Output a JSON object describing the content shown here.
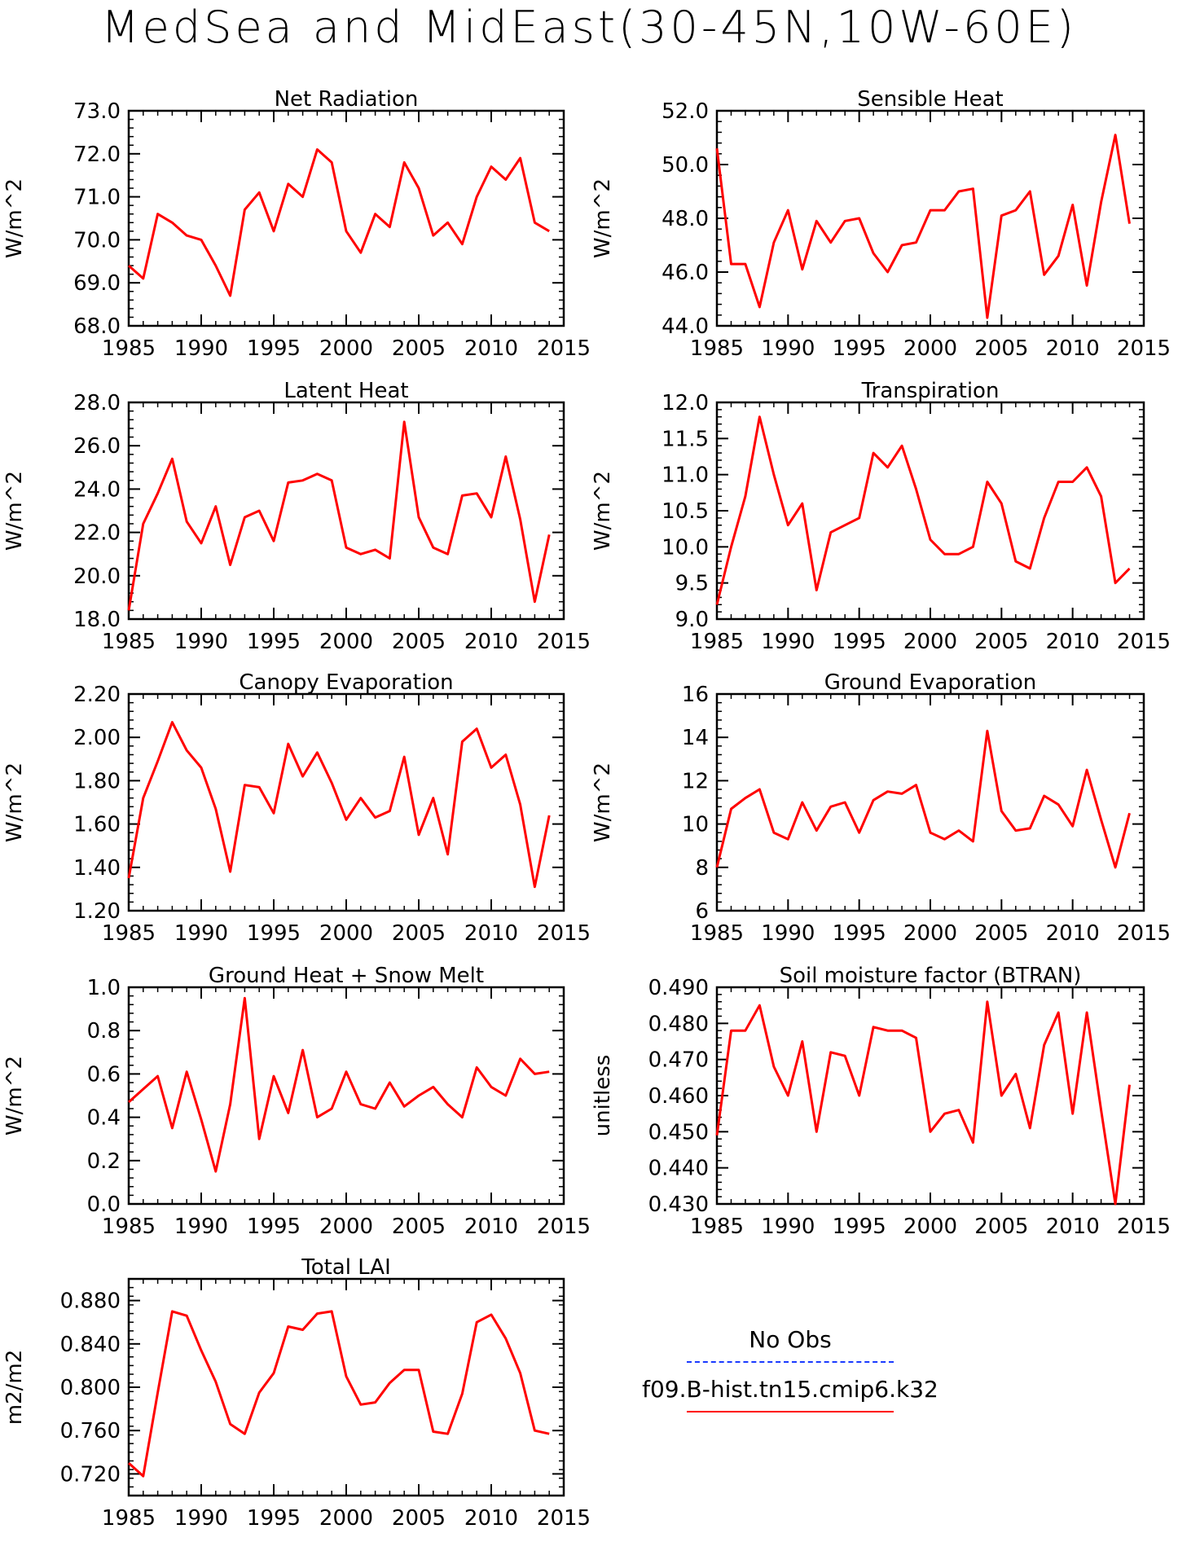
{
  "title": "MedSea and MidEast(30-45N,10W-60E)",
  "colors": {
    "model": "#ff0000",
    "obs": "#1a3aff",
    "axis": "#000000"
  },
  "legend": {
    "obs_label": "No Obs",
    "model_label": "f09.B-hist.tn15.cmip6.k32"
  },
  "chart_data": [
    {
      "type": "line",
      "title": "Net Radiation",
      "ylabel": "W/m^2",
      "xlim": [
        1985,
        2015
      ],
      "ylim": [
        68.0,
        73.0
      ],
      "xticks": [
        1985,
        1990,
        1995,
        2000,
        2005,
        2010,
        2015
      ],
      "xtick_labels": [
        "1985",
        "1990",
        "1995",
        "2000",
        "2005",
        "2010",
        "2015"
      ],
      "yticks": [
        68.0,
        69.0,
        70.0,
        71.0,
        72.0,
        73.0
      ],
      "ytick_labels": [
        "68.0",
        "69.0",
        "70.0",
        "71.0",
        "72.0",
        "73.0"
      ],
      "series": [
        {
          "x": [
            1985,
            1986,
            1987,
            1988,
            1989,
            1990,
            1991,
            1992,
            1993,
            1994,
            1995,
            1996,
            1997,
            1998,
            1999,
            2000,
            2001,
            2002,
            2003,
            2004,
            2005,
            2006,
            2007,
            2008,
            2009,
            2010,
            2011,
            2012,
            2013,
            2014
          ],
          "values": [
            69.4,
            69.1,
            70.6,
            70.4,
            70.1,
            70.0,
            69.4,
            68.7,
            70.7,
            71.1,
            70.2,
            71.3,
            71.0,
            72.1,
            71.8,
            70.2,
            69.7,
            70.6,
            70.3,
            71.8,
            71.2,
            70.1,
            70.4,
            69.9,
            71.0,
            71.7,
            71.4,
            71.9,
            70.4,
            70.2
          ]
        }
      ]
    },
    {
      "type": "line",
      "title": "Sensible Heat",
      "ylabel": "W/m^2",
      "xlim": [
        1985,
        2015
      ],
      "ylim": [
        44.0,
        52.0
      ],
      "xticks": [
        1985,
        1990,
        1995,
        2000,
        2005,
        2010,
        2015
      ],
      "xtick_labels": [
        "1985",
        "1990",
        "1995",
        "2000",
        "2005",
        "2010",
        "2015"
      ],
      "yticks": [
        44.0,
        46.0,
        48.0,
        50.0,
        52.0
      ],
      "ytick_labels": [
        "44.0",
        "46.0",
        "48.0",
        "50.0",
        "52.0"
      ],
      "series": [
        {
          "x": [
            1985,
            1986,
            1987,
            1988,
            1989,
            1990,
            1991,
            1992,
            1993,
            1994,
            1995,
            1996,
            1997,
            1998,
            1999,
            2000,
            2001,
            2002,
            2003,
            2004,
            2005,
            2006,
            2007,
            2008,
            2009,
            2010,
            2011,
            2012,
            2013,
            2014
          ],
          "values": [
            50.6,
            46.3,
            46.3,
            44.7,
            47.1,
            48.3,
            46.1,
            47.9,
            47.1,
            47.9,
            48.0,
            46.7,
            46.0,
            47.0,
            47.1,
            48.3,
            48.3,
            49.0,
            49.1,
            44.3,
            48.1,
            48.3,
            49.0,
            45.9,
            46.6,
            48.5,
            45.5,
            48.6,
            51.1,
            47.8
          ]
        }
      ]
    },
    {
      "type": "line",
      "title": "Latent Heat",
      "ylabel": "W/m^2",
      "xlim": [
        1985,
        2015
      ],
      "ylim": [
        18.0,
        28.0
      ],
      "xticks": [
        1985,
        1990,
        1995,
        2000,
        2005,
        2010,
        2015
      ],
      "xtick_labels": [
        "1985",
        "1990",
        "1995",
        "2000",
        "2005",
        "2010",
        "2015"
      ],
      "yticks": [
        18.0,
        20.0,
        22.0,
        24.0,
        26.0,
        28.0
      ],
      "ytick_labels": [
        "18.0",
        "20.0",
        "22.0",
        "24.0",
        "26.0",
        "28.0"
      ],
      "series": [
        {
          "x": [
            1985,
            1986,
            1987,
            1988,
            1989,
            1990,
            1991,
            1992,
            1993,
            1994,
            1995,
            1996,
            1997,
            1998,
            1999,
            2000,
            2001,
            2002,
            2003,
            2004,
            2005,
            2006,
            2007,
            2008,
            2009,
            2010,
            2011,
            2012,
            2013,
            2014
          ],
          "values": [
            18.4,
            22.4,
            23.8,
            25.4,
            22.5,
            21.5,
            23.2,
            20.5,
            22.7,
            23.0,
            21.6,
            24.3,
            24.4,
            24.7,
            24.4,
            21.3,
            21.0,
            21.2,
            20.8,
            27.1,
            22.7,
            21.3,
            21.0,
            23.7,
            23.8,
            22.7,
            25.5,
            22.6,
            18.8,
            21.9
          ]
        }
      ]
    },
    {
      "type": "line",
      "title": "Transpiration",
      "ylabel": "W/m^2",
      "xlim": [
        1985,
        2015
      ],
      "ylim": [
        9.0,
        12.0
      ],
      "xticks": [
        1985,
        1990,
        1995,
        2000,
        2005,
        2010,
        2015
      ],
      "xtick_labels": [
        "1985",
        "1990",
        "1995",
        "2000",
        "2005",
        "2010",
        "2015"
      ],
      "yticks": [
        9.0,
        9.5,
        10.0,
        10.5,
        11.0,
        11.5,
        12.0
      ],
      "ytick_labels": [
        "9.0",
        "9.5",
        "10.0",
        "10.5",
        "11.0",
        "11.5",
        "12.0"
      ],
      "series": [
        {
          "x": [
            1985,
            1986,
            1987,
            1988,
            1989,
            1990,
            1991,
            1992,
            1993,
            1994,
            1995,
            1996,
            1997,
            1998,
            1999,
            2000,
            2001,
            2002,
            2003,
            2004,
            2005,
            2006,
            2007,
            2008,
            2009,
            2010,
            2011,
            2012,
            2013,
            2014
          ],
          "values": [
            9.2,
            10.0,
            10.7,
            11.8,
            11.0,
            10.3,
            10.6,
            9.4,
            10.2,
            10.3,
            10.4,
            11.3,
            11.1,
            11.4,
            10.8,
            10.1,
            9.9,
            9.9,
            10.0,
            10.9,
            10.6,
            9.8,
            9.7,
            10.4,
            10.9,
            10.9,
            11.1,
            10.7,
            9.5,
            9.7
          ]
        }
      ]
    },
    {
      "type": "line",
      "title": "Canopy Evaporation",
      "ylabel": "W/m^2",
      "xlim": [
        1985,
        2015
      ],
      "ylim": [
        1.2,
        2.2
      ],
      "xticks": [
        1985,
        1990,
        1995,
        2000,
        2005,
        2010,
        2015
      ],
      "xtick_labels": [
        "1985",
        "1990",
        "1995",
        "2000",
        "2005",
        "2010",
        "2015"
      ],
      "yticks": [
        1.2,
        1.4,
        1.6,
        1.8,
        2.0,
        2.2
      ],
      "ytick_labels": [
        "1.20",
        "1.40",
        "1.60",
        "1.80",
        "2.00",
        "2.20"
      ],
      "series": [
        {
          "x": [
            1985,
            1986,
            1987,
            1988,
            1989,
            1990,
            1991,
            1992,
            1993,
            1994,
            1995,
            1996,
            1997,
            1998,
            1999,
            2000,
            2001,
            2002,
            2003,
            2004,
            2005,
            2006,
            2007,
            2008,
            2009,
            2010,
            2011,
            2012,
            2013,
            2014
          ],
          "values": [
            1.35,
            1.72,
            1.89,
            2.07,
            1.94,
            1.86,
            1.67,
            1.38,
            1.78,
            1.77,
            1.65,
            1.97,
            1.82,
            1.93,
            1.79,
            1.62,
            1.72,
            1.63,
            1.66,
            1.91,
            1.55,
            1.72,
            1.46,
            1.98,
            2.04,
            1.86,
            1.92,
            1.69,
            1.31,
            1.64
          ]
        }
      ]
    },
    {
      "type": "line",
      "title": "Ground Evaporation",
      "ylabel": "W/m^2",
      "xlim": [
        1985,
        2015
      ],
      "ylim": [
        6,
        16
      ],
      "xticks": [
        1985,
        1990,
        1995,
        2000,
        2005,
        2010,
        2015
      ],
      "xtick_labels": [
        "1985",
        "1990",
        "1995",
        "2000",
        "2005",
        "2010",
        "2015"
      ],
      "yticks": [
        6,
        8,
        10,
        12,
        14,
        16
      ],
      "ytick_labels": [
        "6",
        "8",
        "10",
        "12",
        "14",
        "16"
      ],
      "series": [
        {
          "x": [
            1985,
            1986,
            1987,
            1988,
            1989,
            1990,
            1991,
            1992,
            1993,
            1994,
            1995,
            1996,
            1997,
            1998,
            1999,
            2000,
            2001,
            2002,
            2003,
            2004,
            2005,
            2006,
            2007,
            2008,
            2009,
            2010,
            2011,
            2012,
            2013,
            2014
          ],
          "values": [
            8.0,
            10.7,
            11.2,
            11.6,
            9.6,
            9.3,
            11.0,
            9.7,
            10.8,
            11.0,
            9.6,
            11.1,
            11.5,
            11.4,
            11.8,
            9.6,
            9.3,
            9.7,
            9.2,
            14.3,
            10.6,
            9.7,
            9.8,
            11.3,
            10.9,
            9.9,
            12.5,
            10.2,
            8.0,
            10.5
          ]
        }
      ]
    },
    {
      "type": "line",
      "title": "Ground Heat + Snow Melt",
      "ylabel": "W/m^2",
      "xlim": [
        1985,
        2015
      ],
      "ylim": [
        0.0,
        1.0
      ],
      "xticks": [
        1985,
        1990,
        1995,
        2000,
        2005,
        2010,
        2015
      ],
      "xtick_labels": [
        "1985",
        "1990",
        "1995",
        "2000",
        "2005",
        "2010",
        "2015"
      ],
      "yticks": [
        0.0,
        0.2,
        0.4,
        0.6,
        0.8,
        1.0
      ],
      "ytick_labels": [
        "0.0",
        "0.2",
        "0.4",
        "0.6",
        "0.8",
        "1.0"
      ],
      "series": [
        {
          "x": [
            1985,
            1986,
            1987,
            1988,
            1989,
            1990,
            1991,
            1992,
            1993,
            1994,
            1995,
            1996,
            1997,
            1998,
            1999,
            2000,
            2001,
            2002,
            2003,
            2004,
            2005,
            2006,
            2007,
            2008,
            2009,
            2010,
            2011,
            2012,
            2013,
            2014
          ],
          "values": [
            0.47,
            0.53,
            0.59,
            0.35,
            0.61,
            0.39,
            0.15,
            0.46,
            0.95,
            0.3,
            0.59,
            0.42,
            0.71,
            0.4,
            0.44,
            0.61,
            0.46,
            0.44,
            0.56,
            0.45,
            0.5,
            0.54,
            0.46,
            0.4,
            0.63,
            0.54,
            0.5,
            0.67,
            0.6,
            0.61
          ]
        }
      ]
    },
    {
      "type": "line",
      "title": "Soil moisture factor (BTRAN)",
      "ylabel": "unitless",
      "xlim": [
        1985,
        2015
      ],
      "ylim": [
        0.43,
        0.49
      ],
      "xticks": [
        1985,
        1990,
        1995,
        2000,
        2005,
        2010,
        2015
      ],
      "xtick_labels": [
        "1985",
        "1990",
        "1995",
        "2000",
        "2005",
        "2010",
        "2015"
      ],
      "yticks": [
        0.43,
        0.44,
        0.45,
        0.46,
        0.47,
        0.48,
        0.49
      ],
      "ytick_labels": [
        "0.430",
        "0.440",
        "0.450",
        "0.460",
        "0.470",
        "0.480",
        "0.490"
      ],
      "series": [
        {
          "x": [
            1985,
            1986,
            1987,
            1988,
            1989,
            1990,
            1991,
            1992,
            1993,
            1994,
            1995,
            1996,
            1997,
            1998,
            1999,
            2000,
            2001,
            2002,
            2003,
            2004,
            2005,
            2006,
            2007,
            2008,
            2009,
            2010,
            2011,
            2012,
            2013,
            2014
          ],
          "values": [
            0.449,
            0.478,
            0.478,
            0.485,
            0.468,
            0.46,
            0.475,
            0.45,
            0.472,
            0.471,
            0.46,
            0.479,
            0.478,
            0.478,
            0.476,
            0.45,
            0.455,
            0.456,
            0.447,
            0.486,
            0.46,
            0.466,
            0.451,
            0.474,
            0.483,
            0.455,
            0.483,
            0.456,
            0.43,
            0.463
          ]
        }
      ]
    },
    {
      "type": "line",
      "title": "Total LAI",
      "ylabel": "m2/m2",
      "xlim": [
        1985,
        2015
      ],
      "ylim": [
        0.7,
        0.9
      ],
      "xticks": [
        1985,
        1990,
        1995,
        2000,
        2005,
        2010,
        2015
      ],
      "xtick_labels": [
        "1985",
        "1990",
        "1995",
        "2000",
        "2005",
        "2010",
        "2015"
      ],
      "yticks": [
        0.72,
        0.76,
        0.8,
        0.84,
        0.88
      ],
      "ytick_labels": [
        "0.720",
        "0.760",
        "0.800",
        "0.840",
        "0.880"
      ],
      "series": [
        {
          "x": [
            1985,
            1986,
            1987,
            1988,
            1989,
            1990,
            1991,
            1992,
            1993,
            1994,
            1995,
            1996,
            1997,
            1998,
            1999,
            2000,
            2001,
            2002,
            2003,
            2004,
            2005,
            2006,
            2007,
            2008,
            2009,
            2010,
            2011,
            2012,
            2013,
            2014
          ],
          "values": [
            0.73,
            0.718,
            0.795,
            0.87,
            0.866,
            0.834,
            0.805,
            0.766,
            0.757,
            0.795,
            0.813,
            0.856,
            0.853,
            0.868,
            0.87,
            0.81,
            0.784,
            0.786,
            0.804,
            0.816,
            0.816,
            0.759,
            0.757,
            0.794,
            0.86,
            0.867,
            0.845,
            0.813,
            0.76,
            0.757
          ]
        }
      ]
    }
  ]
}
